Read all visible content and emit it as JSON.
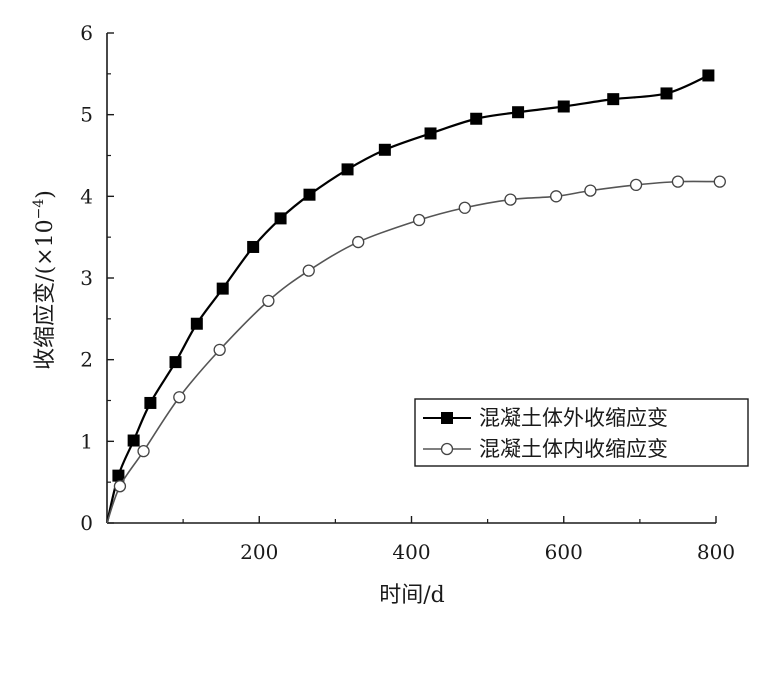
{
  "chart_data": {
    "type": "line",
    "xlabel": "时间/d",
    "ylabel": "收缩应变/(×10",
    "ylabel_exponent": "−4",
    "ylabel_close": ")",
    "xlim": [
      0,
      800
    ],
    "ylim": [
      0,
      6
    ],
    "x_ticks": [
      200,
      400,
      600,
      800
    ],
    "x_tick_labels": [
      "200",
      "400",
      "600",
      "800"
    ],
    "y_ticks": [
      0,
      1,
      2,
      3,
      4,
      5,
      6
    ],
    "y_tick_labels": [
      "0",
      "1",
      "2",
      "3",
      "4",
      "5",
      "6"
    ],
    "grid": false,
    "legend_position": "bottom-right",
    "series": [
      {
        "name": "混凝土体外收缩应变",
        "marker": "filled-square",
        "color": "#000000",
        "x": [
          0,
          15,
          35,
          57,
          90,
          118,
          152,
          192,
          228,
          266,
          316,
          365,
          425,
          485,
          540,
          600,
          665,
          735,
          790
        ],
        "y": [
          0,
          0.58,
          1.01,
          1.47,
          1.97,
          2.44,
          2.87,
          3.38,
          3.73,
          4.02,
          4.33,
          4.57,
          4.77,
          4.95,
          5.03,
          5.1,
          5.19,
          5.26,
          5.48
        ]
      },
      {
        "name": "混凝土体内收缩应变",
        "marker": "hollow-circle",
        "color": "#000000",
        "x": [
          0,
          17,
          48,
          95,
          148,
          212,
          265,
          330,
          410,
          470,
          530,
          590,
          635,
          695,
          750,
          805
        ],
        "y": [
          0,
          0.45,
          0.88,
          1.54,
          2.12,
          2.72,
          3.09,
          3.44,
          3.71,
          3.86,
          3.96,
          4.0,
          4.07,
          4.14,
          4.18,
          4.18
        ]
      }
    ]
  }
}
